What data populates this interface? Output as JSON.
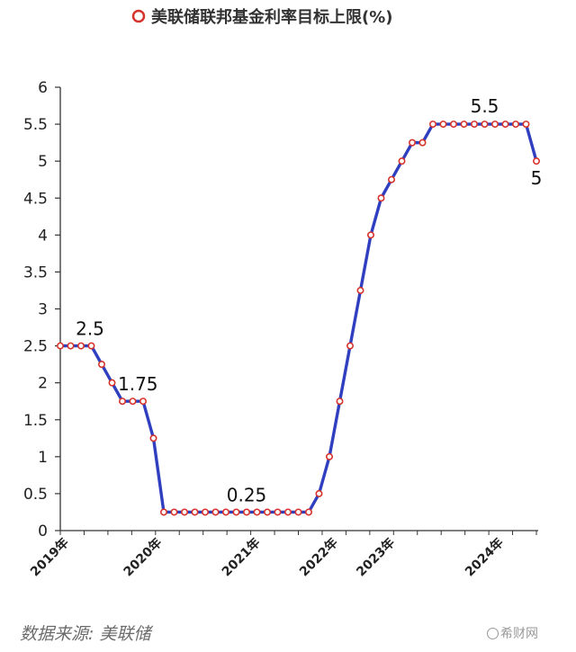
{
  "chart_data": {
    "type": "line",
    "title": "美联储联邦基金利率目标上限(%)",
    "legend": {
      "placement": "top",
      "series_name": "美联储联邦基金利率目标上限(%)"
    },
    "ylim": [
      0,
      6
    ],
    "yticks": [
      "0",
      "0.5",
      "1",
      "1.5",
      "2",
      "2.5",
      "3",
      "3.5",
      "4",
      "4.5",
      "5",
      "5.5",
      "6"
    ],
    "grid": false,
    "xlabels": [
      {
        "label": "2019年",
        "x": 0
      },
      {
        "label": "2020年",
        "x": 9
      },
      {
        "label": "2021年",
        "x": 18.5
      },
      {
        "label": "2022年",
        "x": 26
      },
      {
        "label": "2023年",
        "x": 31.5
      },
      {
        "label": "2024年",
        "x": 42
      }
    ],
    "series": [
      {
        "color": "#2f3fbf",
        "marker_edge": "#d6332c",
        "x": [
          0,
          1,
          2,
          3,
          4,
          5,
          6,
          7,
          8,
          9,
          10,
          11,
          12,
          13,
          14,
          15,
          16,
          17,
          18,
          19,
          20,
          21,
          22,
          23,
          24,
          25,
          26,
          27,
          28,
          29,
          30,
          31,
          32,
          33,
          34,
          35,
          36,
          37,
          38,
          39,
          40,
          41,
          42,
          43,
          44,
          45,
          46
        ],
        "values": [
          2.5,
          2.5,
          2.5,
          2.5,
          2.25,
          2.0,
          1.75,
          1.75,
          1.75,
          1.25,
          0.25,
          0.25,
          0.25,
          0.25,
          0.25,
          0.25,
          0.25,
          0.25,
          0.25,
          0.25,
          0.25,
          0.25,
          0.25,
          0.25,
          0.25,
          0.5,
          1.0,
          1.75,
          2.5,
          3.25,
          4.0,
          4.5,
          4.75,
          5.0,
          5.25,
          5.25,
          5.5,
          5.5,
          5.5,
          5.5,
          5.5,
          5.5,
          5.5,
          5.5,
          5.5,
          5.5,
          5.0
        ]
      }
    ],
    "annotations": [
      {
        "text": "2.5",
        "x": 2,
        "y": 2.5
      },
      {
        "text": "1.75",
        "x": 7.5,
        "y": 1.75
      },
      {
        "text": "0.25",
        "x": 18,
        "y": 0.25
      },
      {
        "text": "5.5",
        "x": 41,
        "y": 5.5
      },
      {
        "text": "5",
        "x": 46,
        "y": 5.0
      }
    ]
  },
  "footer": {
    "source": "数据来源: 美联储",
    "watermark": "希财网"
  }
}
